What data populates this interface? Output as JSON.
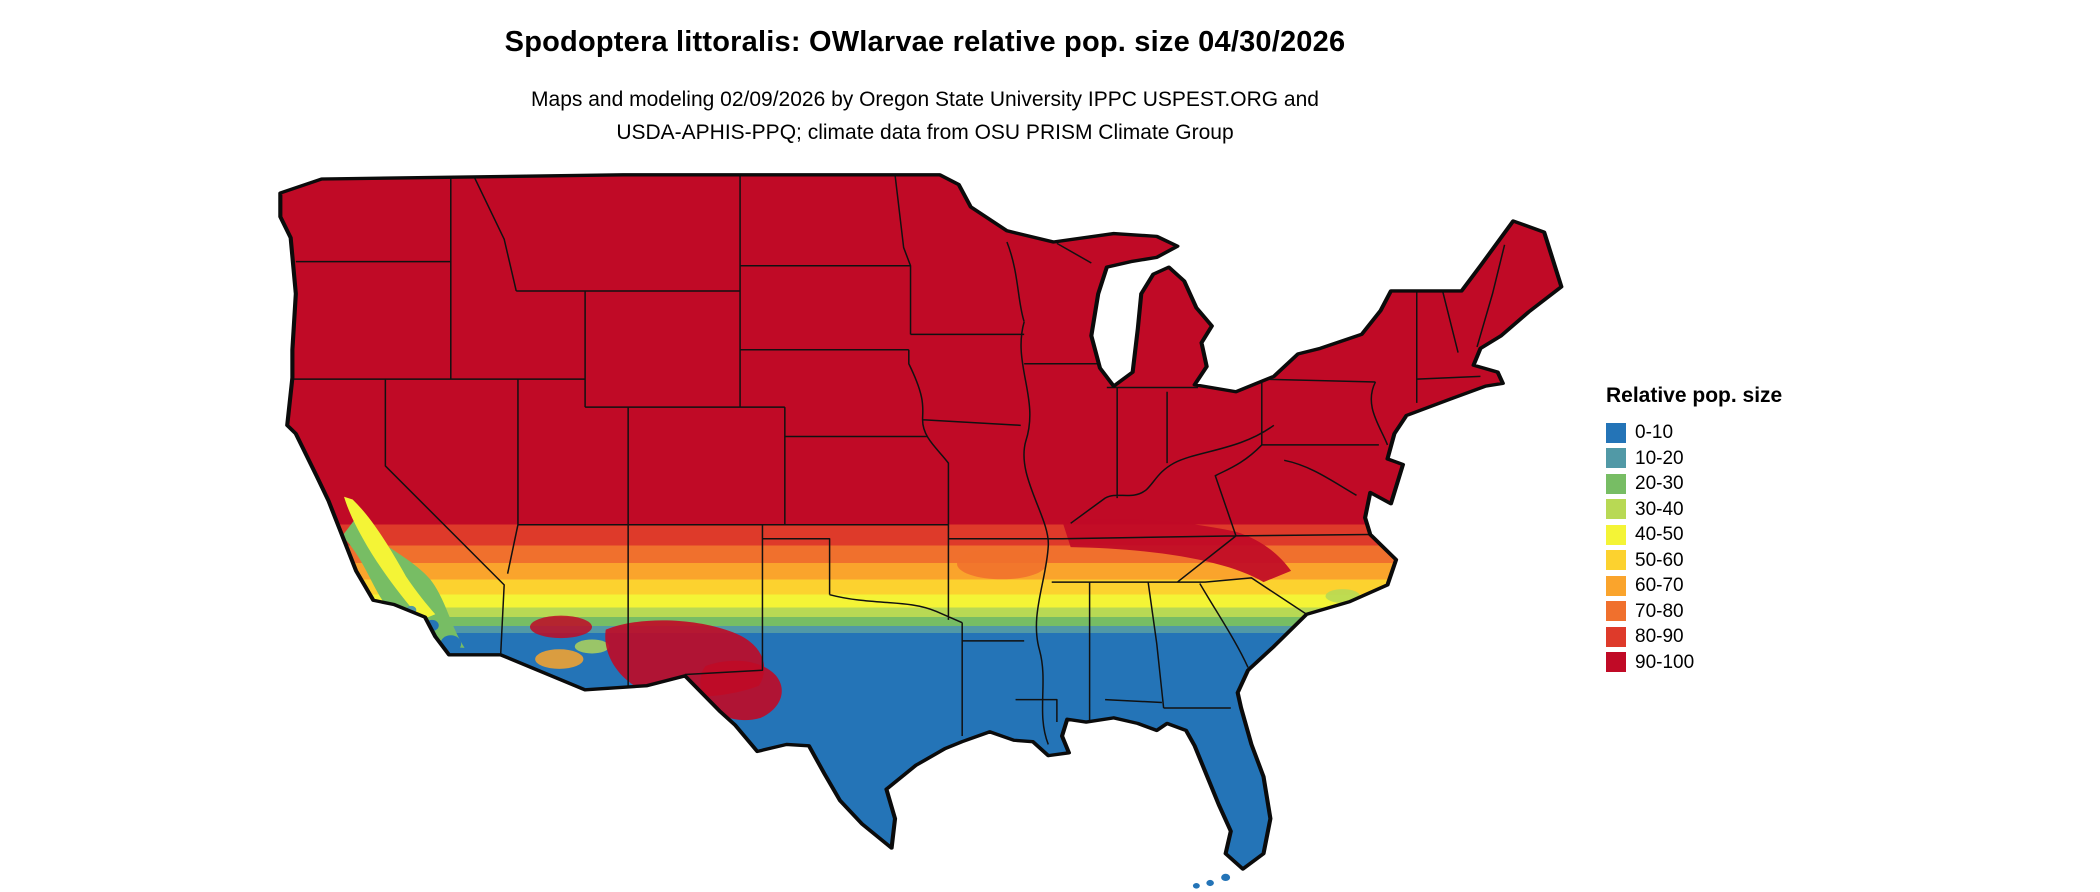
{
  "header": {
    "title": "Spodoptera littoralis: OWlarvae relative pop. size 04/30/2026",
    "subtitle_line1": "Maps and modeling 02/09/2026 by Oregon State University IPPC USPEST.ORG and",
    "subtitle_line2": "USDA-APHIS-PPQ; climate data from OSU PRISM Climate Group"
  },
  "legend": {
    "title": "Relative pop. size",
    "entries": [
      {
        "label": "0-10",
        "color": "#2474B7"
      },
      {
        "label": "10-20",
        "color": "#5199A6"
      },
      {
        "label": "20-30",
        "color": "#77BD64"
      },
      {
        "label": "30-40",
        "color": "#B8D954"
      },
      {
        "label": "40-50",
        "color": "#F4F436"
      },
      {
        "label": "50-60",
        "color": "#FCD22F"
      },
      {
        "label": "60-70",
        "color": "#FAA42C"
      },
      {
        "label": "70-80",
        "color": "#F0702D"
      },
      {
        "label": "80-90",
        "color": "#DE3A2A"
      },
      {
        "label": "90-100",
        "color": "#C00A26"
      }
    ]
  },
  "map": {
    "region": "Contiguous United States",
    "outline_color": "#0b0b0b",
    "band_stops": [
      {
        "class": "90-100",
        "from": 0,
        "to": 0.5
      },
      {
        "class": "80-90",
        "from": 0.5,
        "to": 0.53
      },
      {
        "class": "70-80",
        "from": 0.53,
        "to": 0.555
      },
      {
        "class": "60-70",
        "from": 0.555,
        "to": 0.578
      },
      {
        "class": "50-60",
        "from": 0.578,
        "to": 0.6
      },
      {
        "class": "40-50",
        "from": 0.6,
        "to": 0.618
      },
      {
        "class": "30-40",
        "from": 0.618,
        "to": 0.632
      },
      {
        "class": "20-30",
        "from": 0.632,
        "to": 0.645
      },
      {
        "class": "10-20",
        "from": 0.645,
        "to": 0.655
      },
      {
        "class": "0-10",
        "from": 0.655,
        "to": 1
      }
    ],
    "pattern_summary": "Northern and central US in 90-100; narrow east-west transition band (80-90 down to 10-20) across the southern tier; far south (south Texas, Gulf Coast, Florida, southeastern coastal plain, desert Southwest) in 0-10; mixed classes along the California coast and Southwest highlands."
  }
}
